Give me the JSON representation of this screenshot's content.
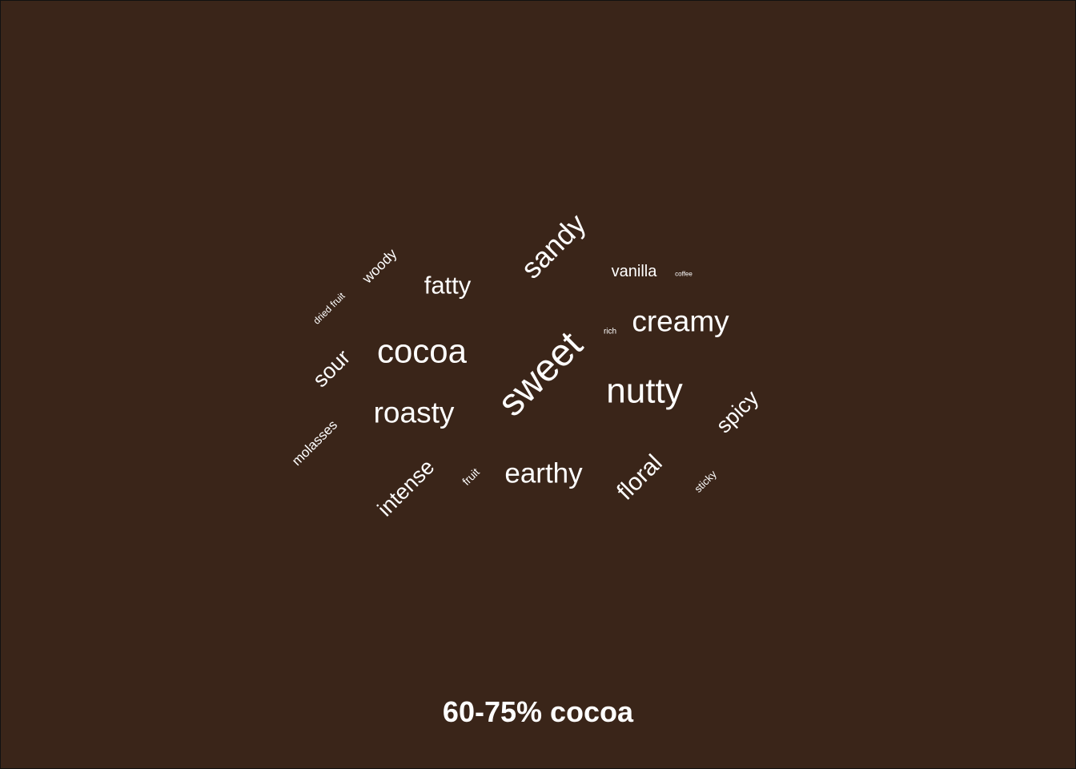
{
  "chart_data": {
    "type": "wordcloud",
    "title": "60-75% cocoa",
    "colors": {
      "background": "#3a2519",
      "text": "#ffffff"
    },
    "words": [
      {
        "text": "sweet",
        "weight": 48,
        "orientation": "diagonal-up"
      },
      {
        "text": "nutty",
        "weight": 44,
        "orientation": "horizontal"
      },
      {
        "text": "cocoa",
        "weight": 42,
        "orientation": "horizontal"
      },
      {
        "text": "creamy",
        "weight": 37,
        "orientation": "horizontal"
      },
      {
        "text": "roasty",
        "weight": 37,
        "orientation": "horizontal"
      },
      {
        "text": "sandy",
        "weight": 36,
        "orientation": "diagonal-up"
      },
      {
        "text": "earthy",
        "weight": 35,
        "orientation": "horizontal"
      },
      {
        "text": "fatty",
        "weight": 31,
        "orientation": "horizontal"
      },
      {
        "text": "floral",
        "weight": 30,
        "orientation": "diagonal-up"
      },
      {
        "text": "intense",
        "weight": 27,
        "orientation": "diagonal-up"
      },
      {
        "text": "sour",
        "weight": 27,
        "orientation": "diagonal-up"
      },
      {
        "text": "spicy",
        "weight": 27,
        "orientation": "diagonal-up"
      },
      {
        "text": "vanilla",
        "weight": 20,
        "orientation": "horizontal"
      },
      {
        "text": "woody",
        "weight": 18,
        "orientation": "diagonal-up"
      },
      {
        "text": "molasses",
        "weight": 17,
        "orientation": "diagonal-up"
      },
      {
        "text": "fruit",
        "weight": 14,
        "orientation": "diagonal-up"
      },
      {
        "text": "sticky",
        "weight": 13,
        "orientation": "diagonal-up"
      },
      {
        "text": "dried fruit",
        "weight": 12,
        "orientation": "diagonal-up"
      },
      {
        "text": "rich",
        "weight": 10,
        "orientation": "horizontal"
      },
      {
        "text": "coffee",
        "weight": 8,
        "orientation": "horizontal"
      }
    ]
  }
}
